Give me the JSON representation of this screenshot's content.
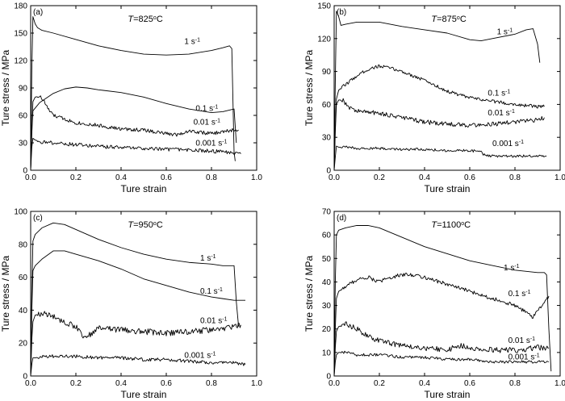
{
  "figure": {
    "xlabel": "Ture strain",
    "ylabel": "Ture stress / MPa"
  },
  "chart_data": [
    {
      "type": "line",
      "panel": "(a)",
      "title": "T=825°C",
      "title_parts": {
        "var": "T",
        "pre": "=825",
        "sup": "o",
        "post": "C"
      },
      "xlabel": "Ture strain",
      "ylabel": "Ture stress / MPa",
      "xlim": [
        0.0,
        1.0
      ],
      "ylim": [
        0,
        180
      ],
      "xticks": [
        "0.0",
        "0.2",
        "0.4",
        "0.6",
        "0.8",
        "1.0"
      ],
      "yticks": [
        "0",
        "30",
        "60",
        "90",
        "120",
        "150",
        "180"
      ],
      "series": [
        {
          "name": "1 s-1",
          "label_base": "1 s",
          "label_sup": "-1",
          "label_at": [
            0.68,
            138
          ],
          "x": [
            0.0,
            0.005,
            0.01,
            0.02,
            0.03,
            0.05,
            0.1,
            0.2,
            0.3,
            0.4,
            0.5,
            0.6,
            0.7,
            0.8,
            0.85,
            0.88,
            0.89,
            0.9,
            0.905
          ],
          "y": [
            0,
            110,
            168,
            160,
            156,
            153,
            150,
            143,
            136,
            131,
            127,
            126,
            127,
            131,
            134,
            136,
            133,
            20,
            10
          ]
        },
        {
          "name": "0.1 s-1",
          "label_base": "0.1 s",
          "label_sup": "-1",
          "label_at": [
            0.73,
            65
          ],
          "x": [
            0.0,
            0.005,
            0.01,
            0.02,
            0.04,
            0.1,
            0.15,
            0.2,
            0.25,
            0.3,
            0.4,
            0.5,
            0.6,
            0.7,
            0.8,
            0.85,
            0.9,
            0.91
          ],
          "y": [
            0,
            40,
            65,
            68,
            74,
            84,
            89,
            91,
            90,
            88,
            85,
            80,
            73,
            67,
            63,
            64,
            67,
            30
          ]
        },
        {
          "name": "0.01 s-1",
          "label_base": "0.01 s",
          "label_sup": "-1",
          "label_at": [
            0.72,
            50
          ],
          "noise": 2.0,
          "x": [
            0.0,
            0.005,
            0.01,
            0.02,
            0.04,
            0.06,
            0.08,
            0.1,
            0.15,
            0.2,
            0.3,
            0.4,
            0.5,
            0.6,
            0.65,
            0.7,
            0.8,
            0.9,
            0.92
          ],
          "y": [
            0,
            45,
            75,
            80,
            81,
            75,
            66,
            60,
            56,
            52,
            49,
            45,
            44,
            40,
            39,
            43,
            40,
            44,
            44
          ]
        },
        {
          "name": "0.001 s-1",
          "label_base": "0.001 s",
          "label_sup": "-1",
          "label_at": [
            0.73,
            27
          ],
          "noise": 2.0,
          "x": [
            0.0,
            0.005,
            0.01,
            0.02,
            0.05,
            0.1,
            0.2,
            0.3,
            0.4,
            0.5,
            0.6,
            0.7,
            0.8,
            0.9,
            0.93
          ],
          "y": [
            0,
            25,
            35,
            33,
            31,
            30,
            28,
            26,
            25,
            24,
            23,
            22,
            21,
            19,
            18
          ]
        }
      ]
    },
    {
      "type": "line",
      "panel": "(b)",
      "title": "T=875°C",
      "title_parts": {
        "var": "T",
        "pre": "=875",
        "sup": "o",
        "post": "C"
      },
      "xlabel": "Ture strain",
      "ylabel": "Ture stress / MPa",
      "xlim": [
        0.0,
        1.0
      ],
      "ylim": [
        0,
        150
      ],
      "xticks": [
        "0.0",
        "0.2",
        "0.4",
        "0.6",
        "0.8",
        "1.0"
      ],
      "yticks": [
        "0",
        "30",
        "60",
        "90",
        "120",
        "150"
      ],
      "series": [
        {
          "name": "1 s-1",
          "label_base": "1 s",
          "label_sup": "-1",
          "label_at": [
            0.72,
            124
          ],
          "x": [
            0.0,
            0.005,
            0.01,
            0.02,
            0.03,
            0.05,
            0.1,
            0.2,
            0.3,
            0.4,
            0.5,
            0.6,
            0.65,
            0.7,
            0.8,
            0.85,
            0.88,
            0.9,
            0.91
          ],
          "y": [
            0,
            80,
            145,
            140,
            132,
            133,
            135,
            135,
            131,
            128,
            125,
            119,
            118,
            120,
            124,
            128,
            129,
            115,
            98
          ]
        },
        {
          "name": "0.1 s-1",
          "label_base": "0.1 s",
          "label_sup": "-1",
          "label_at": [
            0.68,
            68
          ],
          "noise": 1.5,
          "x": [
            0.0,
            0.005,
            0.01,
            0.02,
            0.05,
            0.1,
            0.15,
            0.2,
            0.25,
            0.3,
            0.4,
            0.5,
            0.6,
            0.7,
            0.8,
            0.9,
            0.93
          ],
          "y": [
            0,
            40,
            65,
            73,
            78,
            86,
            92,
            95,
            93,
            90,
            82,
            72,
            66,
            63,
            60,
            58,
            58
          ]
        },
        {
          "name": "0.01 s-1",
          "label_base": "0.01 s",
          "label_sup": "-1",
          "label_at": [
            0.68,
            50
          ],
          "noise": 2.0,
          "x": [
            0.0,
            0.005,
            0.01,
            0.02,
            0.04,
            0.06,
            0.1,
            0.2,
            0.3,
            0.4,
            0.5,
            0.6,
            0.7,
            0.8,
            0.9,
            0.93
          ],
          "y": [
            0,
            35,
            60,
            64,
            64,
            58,
            54,
            52,
            48,
            44,
            42,
            41,
            42,
            44,
            46,
            48
          ]
        },
        {
          "name": "0.001 s-1",
          "label_base": "0.001 s",
          "label_sup": "-1",
          "label_at": [
            0.7,
            22
          ],
          "noise": 1.2,
          "x": [
            0.0,
            0.005,
            0.01,
            0.02,
            0.05,
            0.1,
            0.2,
            0.3,
            0.4,
            0.5,
            0.6,
            0.65,
            0.66,
            0.7,
            0.8,
            0.9,
            0.94
          ],
          "y": [
            0,
            12,
            22,
            21,
            21,
            20,
            20,
            19,
            19,
            18,
            18,
            17,
            14,
            13,
            13,
            13,
            13
          ]
        }
      ]
    },
    {
      "type": "line",
      "panel": "(c)",
      "title": "T=950°C",
      "title_parts": {
        "var": "T",
        "pre": "=950",
        "sup": "o",
        "post": "C"
      },
      "xlabel": "Ture strain",
      "ylabel": "Ture stress / MPa",
      "xlim": [
        0.0,
        1.0
      ],
      "ylim": [
        0,
        100
      ],
      "xticks": [
        "0.0",
        "0.2",
        "0.4",
        "0.6",
        "0.8",
        "1.0"
      ],
      "yticks": [
        "0",
        "20",
        "40",
        "60",
        "80",
        "100"
      ],
      "series": [
        {
          "name": "1 s-1",
          "label_base": "1 s",
          "label_sup": "-1",
          "label_at": [
            0.75,
            70
          ],
          "x": [
            0.0,
            0.005,
            0.01,
            0.02,
            0.05,
            0.1,
            0.15,
            0.2,
            0.3,
            0.4,
            0.5,
            0.6,
            0.7,
            0.8,
            0.85,
            0.9,
            0.91,
            0.92
          ],
          "y": [
            0,
            50,
            82,
            86,
            90,
            93,
            92,
            89,
            83,
            78,
            74,
            71,
            69,
            68,
            67,
            67,
            45,
            30
          ]
        },
        {
          "name": "0.1 s-1",
          "label_base": "0.1 s",
          "label_sup": "-1",
          "label_at": [
            0.75,
            50
          ],
          "x": [
            0.0,
            0.005,
            0.01,
            0.02,
            0.05,
            0.1,
            0.15,
            0.2,
            0.3,
            0.4,
            0.5,
            0.6,
            0.7,
            0.8,
            0.85,
            0.9,
            0.92,
            0.95
          ],
          "y": [
            0,
            40,
            64,
            67,
            71,
            76,
            76,
            74,
            70,
            65,
            59,
            55,
            51,
            48,
            47,
            46,
            46,
            46
          ]
        },
        {
          "name": "0.01 s-1",
          "label_base": "0.01 s",
          "label_sup": "-1",
          "label_at": [
            0.75,
            32
          ],
          "noise": 1.8,
          "x": [
            0.0,
            0.005,
            0.01,
            0.02,
            0.05,
            0.1,
            0.15,
            0.2,
            0.22,
            0.24,
            0.26,
            0.3,
            0.4,
            0.5,
            0.6,
            0.7,
            0.8,
            0.9,
            0.93
          ],
          "y": [
            0,
            22,
            33,
            37,
            38,
            36,
            33,
            30,
            26,
            22,
            25,
            29,
            28,
            27,
            26,
            27,
            28,
            30,
            31
          ]
        },
        {
          "name": "0.001 s-1",
          "label_base": "0.001 s",
          "label_sup": "-1",
          "label_at": [
            0.68,
            11
          ],
          "noise": 1.0,
          "x": [
            0.0,
            0.005,
            0.01,
            0.02,
            0.05,
            0.1,
            0.2,
            0.3,
            0.4,
            0.5,
            0.6,
            0.7,
            0.8,
            0.9,
            0.95
          ],
          "y": [
            0,
            7,
            11,
            11,
            12,
            12,
            12,
            11,
            11,
            10,
            10,
            9,
            8,
            8,
            7
          ]
        }
      ]
    },
    {
      "type": "line",
      "panel": "(d)",
      "title": "T=1100°C",
      "title_parts": {
        "var": "T",
        "pre": "=1100",
        "sup": "o",
        "post": "C"
      },
      "xlabel": "Ture strain",
      "ylabel": "Ture stress / MPa",
      "xlim": [
        0.0,
        1.0
      ],
      "ylim": [
        0,
        70
      ],
      "xticks": [
        "0.0",
        "0.2",
        "0.4",
        "0.6",
        "0.8",
        "1.0"
      ],
      "yticks": [
        "0",
        "10",
        "20",
        "30",
        "40",
        "50",
        "60",
        "70"
      ],
      "series": [
        {
          "name": "1 s-1",
          "label_base": "1 s",
          "label_sup": "-1",
          "label_at": [
            0.75,
            45
          ],
          "x": [
            0.0,
            0.005,
            0.01,
            0.02,
            0.05,
            0.1,
            0.15,
            0.2,
            0.3,
            0.4,
            0.5,
            0.6,
            0.7,
            0.8,
            0.9,
            0.93,
            0.94,
            0.95,
            0.96
          ],
          "y": [
            0,
            40,
            60,
            62,
            63,
            64,
            64,
            63,
            59,
            55,
            52,
            49,
            47,
            45,
            44,
            44,
            43,
            20,
            2
          ]
        },
        {
          "name": "0.1 s-1",
          "label_base": "0.1 s",
          "label_sup": "-1",
          "label_at": [
            0.77,
            34
          ],
          "noise": 0.8,
          "x": [
            0.0,
            0.005,
            0.01,
            0.02,
            0.05,
            0.1,
            0.15,
            0.2,
            0.25,
            0.3,
            0.35,
            0.4,
            0.5,
            0.6,
            0.7,
            0.8,
            0.85,
            0.88,
            0.9,
            0.93,
            0.95
          ],
          "y": [
            0,
            20,
            33,
            36,
            38,
            41,
            42,
            40,
            42,
            43,
            43,
            42,
            39,
            36,
            33,
            30,
            27,
            25,
            28,
            31,
            34
          ]
        },
        {
          "name": "0.01 s-1",
          "label_base": "0.01 s",
          "label_sup": "-1",
          "label_at": [
            0.77,
            14
          ],
          "noise": 1.2,
          "x": [
            0.0,
            0.005,
            0.01,
            0.02,
            0.05,
            0.1,
            0.15,
            0.2,
            0.3,
            0.4,
            0.5,
            0.55,
            0.6,
            0.7,
            0.8,
            0.9,
            0.95
          ],
          "y": [
            0,
            12,
            19,
            21,
            22,
            20,
            17,
            15,
            13,
            12,
            11,
            13,
            12,
            11,
            11,
            12,
            12
          ]
        },
        {
          "name": "0.001 s-1",
          "label_base": "0.001 s",
          "label_sup": "-1",
          "label_at": [
            0.77,
            7
          ],
          "noise": 0.6,
          "x": [
            0.0,
            0.005,
            0.01,
            0.02,
            0.05,
            0.1,
            0.2,
            0.3,
            0.4,
            0.5,
            0.6,
            0.7,
            0.8,
            0.9,
            0.95
          ],
          "y": [
            0,
            6,
            9,
            10,
            10,
            9,
            9,
            8,
            8,
            7,
            7,
            6,
            6,
            6,
            6
          ]
        }
      ]
    }
  ]
}
